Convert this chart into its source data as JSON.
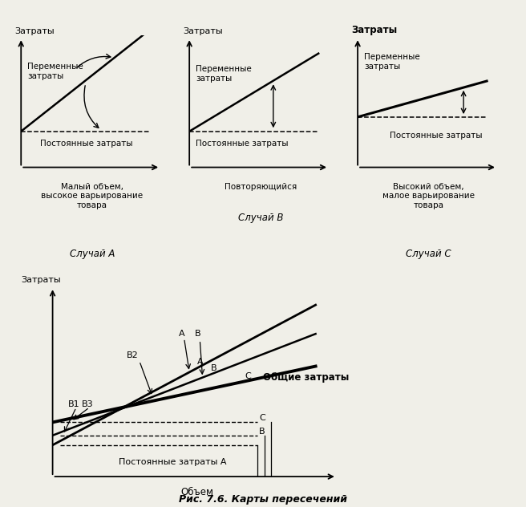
{
  "bg_color": "#f0efe8",
  "line_color": "#000000",
  "top_charts": [
    {
      "ylabel": "Затраты",
      "fixed_label": "Постоянные затраты",
      "variable_label": "Переменные\nзатраты",
      "bottom_label": "Малый объем,\nвысокое варьирование\nтовара",
      "case_label": "Случай А",
      "type": "steep_linear"
    },
    {
      "ylabel": "Затраты",
      "fixed_label": "Постоянные затраты",
      "variable_label": "Переменные\nзатраты",
      "bottom_label": "Повторяющийся",
      "case_label": "Случай В",
      "type": "linear"
    },
    {
      "ylabel": "Затраты",
      "fixed_label": "Постоянные затраты",
      "variable_label": "Переменные\nзатраты",
      "bottom_label": "Высокий объем,\nмалое варьирование\nтовара",
      "case_label": "Случай С",
      "type": "shallow_linear"
    }
  ],
  "bottom_chart": {
    "ylabel": "Затраты",
    "xlabel": "Объем",
    "caption": "Рис. 7.6. Карты пересечений",
    "fixed_label": "Постоянные затраты А"
  }
}
